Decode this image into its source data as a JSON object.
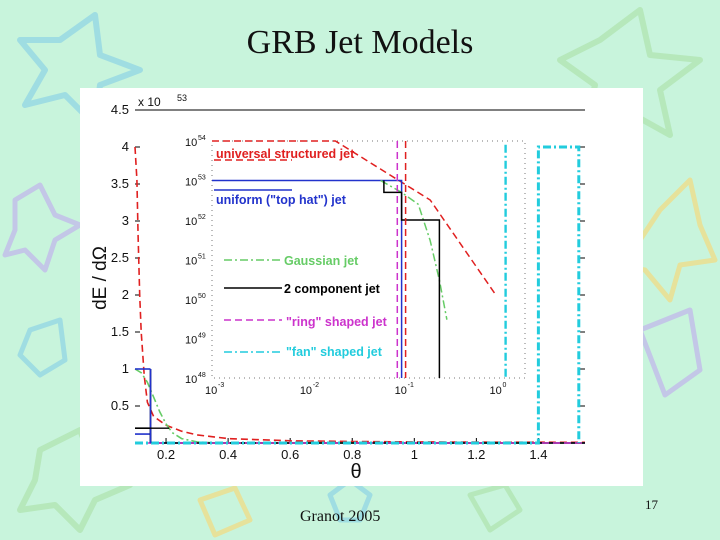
{
  "slide": {
    "title": "GRB Jet Models",
    "citation": "Granot 2005",
    "page_number": "17",
    "colors": {
      "background": "#c8f4dc",
      "title": "#111111"
    }
  },
  "chart_data": [
    {
      "type": "line",
      "title": "",
      "xlabel": "θ",
      "ylabel": "dE / dΩ",
      "y_multiplier": "x 10",
      "y_multiplier_exp": "53",
      "xlim": [
        0.1,
        1.55
      ],
      "ylim": [
        0,
        4.5
      ],
      "xticks": [
        "0.2",
        "0.4",
        "0.6",
        "0.8",
        "1",
        "1.2",
        "1.4"
      ],
      "yticks": [
        "0.5",
        "1",
        "1.5",
        "2",
        "2.5",
        "3",
        "3.5",
        "4",
        "4.5"
      ],
      "grid": false,
      "series": [
        {
          "name": "universal structured jet",
          "color": "#e02020",
          "style": "dashed",
          "x": [
            0.1,
            0.106,
            0.11,
            0.115,
            0.12,
            0.13,
            0.14,
            0.16,
            0.2,
            0.25,
            0.3,
            0.4,
            0.6,
            0.8,
            1.0,
            1.2,
            1.55
          ],
          "y": [
            4.0,
            3.56,
            2.8,
            2.0,
            1.5,
            0.9,
            0.55,
            0.36,
            0.24,
            0.16,
            0.11,
            0.06,
            0.03,
            0.02,
            0.015,
            0.012,
            0.01
          ]
        },
        {
          "name": "uniform (\"top hat\") jet",
          "color": "#2233cc",
          "style": "solid",
          "x": [
            0.1,
            0.15,
            0.15,
            1.55
          ],
          "y": [
            0.12,
            0.12,
            0,
            0
          ]
        },
        {
          "name": "Gaussian jet",
          "color": "#66cc66",
          "style": "dashdot",
          "x": [
            0.1,
            0.12,
            0.14,
            0.16,
            0.18,
            0.2,
            0.22,
            0.25,
            0.3,
            0.35,
            0.4,
            1.55
          ],
          "y": [
            1.0,
            0.95,
            0.82,
            0.62,
            0.42,
            0.26,
            0.14,
            0.06,
            0.015,
            0.003,
            0,
            0
          ]
        },
        {
          "name": "2 component jet",
          "color": "#000000",
          "style": "solid",
          "x": [
            0.1,
            0.15,
            0.15,
            1.55
          ],
          "y": [
            0.2,
            0.2,
            0,
            0
          ]
        },
        {
          "name": "\"ring\" shaped jet",
          "color": "#cc33cc",
          "style": "dashed",
          "x": [
            0.1,
            1.55
          ],
          "y": [
            0,
            0
          ]
        },
        {
          "name": "\"fan\" shaped jet",
          "color": "#22ccdd",
          "style": "dashdot",
          "x": [
            0.1,
            1.4,
            1.4,
            1.53,
            1.53
          ],
          "y": [
            0,
            0,
            4.0,
            4.0,
            0
          ]
        }
      ],
      "annotations": [
        {
          "type": "crosshair",
          "x": 0.15,
          "y_from": 0,
          "y_to": 1.0,
          "color": "#000000"
        },
        {
          "type": "vertical-line",
          "x": 0.15,
          "y_from": 0,
          "y_to": 1.0,
          "color": "#2233cc"
        }
      ]
    },
    {
      "type": "line",
      "title": "",
      "inset": true,
      "xscale": "log",
      "yscale": "log",
      "xlim": [
        0.001,
        2
      ],
      "ylim": [
        1e+48,
        1e+54
      ],
      "xtick_labels": [
        {
          "base": "10",
          "exp": "-3",
          "value": 0.001
        },
        {
          "base": "10",
          "exp": "-2",
          "value": 0.01
        },
        {
          "base": "10",
          "exp": "-1",
          "value": 0.1
        },
        {
          "base": "10",
          "exp": "0",
          "value": 1
        }
      ],
      "ytick_labels": [
        {
          "base": "10",
          "exp": "54",
          "value": 1e+54
        },
        {
          "base": "10",
          "exp": "53",
          "value": 1e+53
        },
        {
          "base": "10",
          "exp": "52",
          "value": 1e+52
        },
        {
          "base": "10",
          "exp": "51",
          "value": 1e+51
        },
        {
          "base": "10",
          "exp": "50",
          "value": 1e+50
        },
        {
          "base": "10",
          "exp": "49",
          "value": 1e+49
        },
        {
          "base": "10",
          "exp": "48",
          "value": 1e+48
        }
      ],
      "legend_placement": "left",
      "series": [
        {
          "name": "universal structured jet",
          "color": "#e02020",
          "style": "dashed",
          "x": [
            0.001,
            0.02,
            0.2,
            1.0
          ],
          "y": [
            1e+54,
            1e+54,
            3.2e+52,
            1.2e+50
          ]
        },
        {
          "name": "uniform (\"top hat\") jet",
          "color": "#2233cc",
          "style": "solid",
          "x": [
            0.001,
            0.1,
            0.1
          ],
          "y": [
            1e+53,
            1e+53,
            1e+48
          ]
        },
        {
          "name": "Gaussian jet",
          "color": "#66cc66",
          "style": "dashdot",
          "x": [
            0.06,
            0.1,
            0.15,
            0.2,
            0.25,
            0.3
          ],
          "y": [
            1e+53,
            5e+52,
            2.5e+52,
            3e+51,
            3e+50,
            3e+49
          ]
        },
        {
          "name": "2 component jet",
          "color": "#000000",
          "style": "solid",
          "x": [
            0.065,
            0.065,
            0.1,
            0.1,
            0.25,
            0.25
          ],
          "y": [
            1e+53,
            5e+52,
            5e+52,
            1e+52,
            1e+52,
            1e+48
          ]
        },
        {
          "name": "\"ring\" shaped jet",
          "color": "#cc33cc",
          "style": "dashed",
          "x": [
            0.09,
            0.09
          ],
          "y": [
            1e+54,
            1e+48
          ]
        },
        {
          "name": "\"fan\" shaped jet",
          "color": "#22ccdd",
          "style": "dashdot",
          "x": [
            1.25,
            1.25
          ],
          "y": [
            8e+53,
            1e+48
          ]
        }
      ],
      "extra_lines": [
        {
          "color": "#e02020",
          "style": "dashed",
          "x": [
            0.11,
            0.11
          ],
          "y": [
            1e+54,
            1e+48
          ]
        }
      ]
    }
  ]
}
